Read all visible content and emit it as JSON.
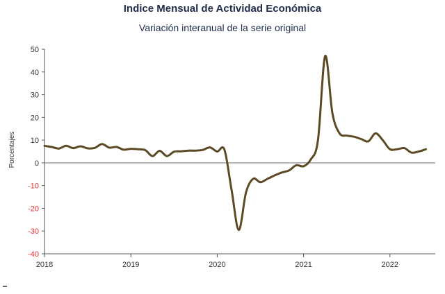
{
  "title": "Indice Mensual de  Actividad Económica",
  "subtitle": "Variación interanual de la serie original",
  "colors": {
    "line": "#5c4a25",
    "zero_line": "#8a8a8a",
    "axis": "#555555",
    "negative_tick": "#e03030"
  },
  "chart_data": {
    "type": "line",
    "title": "Indice Mensual de  Actividad Económica",
    "subtitle": "Variación interanual de la serie original",
    "xlabel": "",
    "ylabel": "Porcentajes",
    "ylim": [
      -40,
      50
    ],
    "yticks": [
      50,
      40,
      30,
      20,
      10,
      0,
      -10,
      -20,
      -30,
      -40
    ],
    "xticks": [
      "2018",
      "2019",
      "2020",
      "2021",
      "2022"
    ],
    "grid": false,
    "x_start": "2018-01",
    "x_end": "2022-06",
    "x": [
      "2018-01",
      "2018-02",
      "2018-03",
      "2018-04",
      "2018-05",
      "2018-06",
      "2018-07",
      "2018-08",
      "2018-09",
      "2018-10",
      "2018-11",
      "2018-12",
      "2019-01",
      "2019-02",
      "2019-03",
      "2019-04",
      "2019-05",
      "2019-06",
      "2019-07",
      "2019-08",
      "2019-09",
      "2019-10",
      "2019-11",
      "2019-12",
      "2020-01",
      "2020-02",
      "2020-03",
      "2020-04",
      "2020-05",
      "2020-06",
      "2020-07",
      "2020-08",
      "2020-09",
      "2020-10",
      "2020-11",
      "2020-12",
      "2021-01",
      "2021-02",
      "2021-03",
      "2021-04",
      "2021-05",
      "2021-06",
      "2021-07",
      "2021-08",
      "2021-09",
      "2021-10",
      "2021-11",
      "2021-12",
      "2022-01",
      "2022-02",
      "2022-03",
      "2022-04",
      "2022-05",
      "2022-06"
    ],
    "series": [
      {
        "values": [
          7.5,
          7,
          6.3,
          7.5,
          6.5,
          7.3,
          6.4,
          6.6,
          8.3,
          6.7,
          7,
          5.8,
          6.2,
          6,
          5.6,
          3,
          5.3,
          3,
          4.9,
          5.1,
          5.4,
          5.4,
          5.7,
          6.8,
          5,
          5.8,
          -12,
          -29.5,
          -13,
          -7,
          -8.5,
          -7,
          -5.5,
          -4.2,
          -3.3,
          -1,
          -1.5,
          1.5,
          10,
          47,
          22,
          13,
          12,
          11.5,
          10.5,
          9.5,
          13,
          10,
          6,
          6,
          6.5,
          4.5,
          5,
          6
        ]
      }
    ]
  }
}
